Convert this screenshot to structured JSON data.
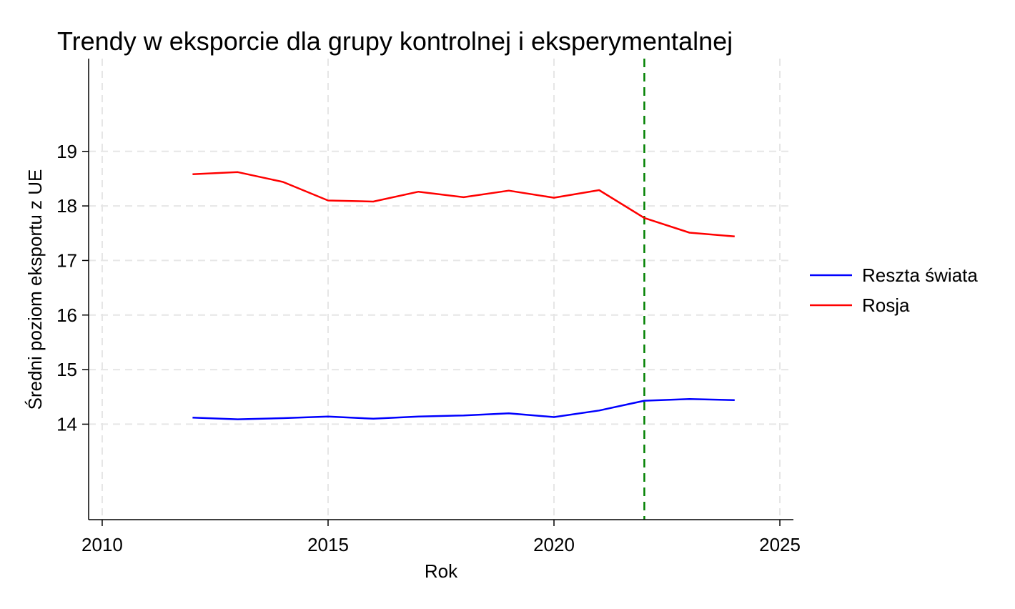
{
  "chart_data": {
    "type": "line",
    "title": "Trendy w eksporcie dla grupy kontrolnej i eksperymentalnej",
    "xlabel": "Rok",
    "ylabel": "Średni poziom eksportu z UE",
    "xlim": [
      2009.7,
      2025.3
    ],
    "ylim": [
      12.25,
      20.7
    ],
    "xticks": [
      2010,
      2015,
      2020,
      2025
    ],
    "yticks": [
      14,
      15,
      16,
      17,
      18,
      19
    ],
    "grid": true,
    "legend_position": "right",
    "x": [
      2012,
      2013,
      2014,
      2015,
      2016,
      2017,
      2018,
      2019,
      2020,
      2021,
      2022,
      2023,
      2024
    ],
    "series": [
      {
        "name": "Reszta świata",
        "color": "#0000ff",
        "values": [
          14.12,
          14.09,
          14.11,
          14.14,
          14.1,
          14.14,
          14.16,
          14.2,
          14.13,
          14.25,
          14.43,
          14.46,
          14.44
        ]
      },
      {
        "name": "Rosja",
        "color": "#ff0000",
        "values": [
          18.58,
          18.62,
          18.44,
          18.1,
          18.08,
          18.26,
          18.16,
          18.28,
          18.15,
          18.29,
          17.78,
          17.51,
          17.44
        ]
      }
    ],
    "reference_line": {
      "x": 2022,
      "color": "#008000",
      "style": "dashed"
    }
  }
}
